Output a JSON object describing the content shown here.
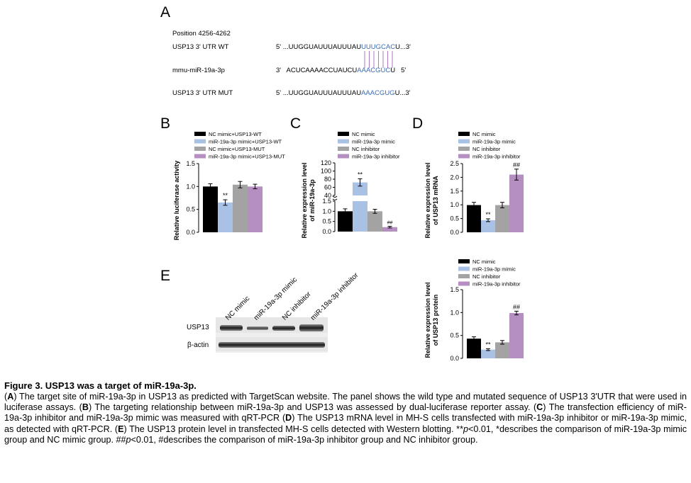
{
  "colors": {
    "nc_mimic": "#000000",
    "mimic": "#a9c1e5",
    "nc_inhibitor": "#a3a3a3",
    "inhibitor": "#b58fc1",
    "seq_blue": "#3a6db5",
    "pair_line": "#9b59b6"
  },
  "panelA": {
    "letter": "A",
    "position": "Position 4256-4262",
    "rows": [
      {
        "label": "USP13 3' UTR WT",
        "p5": "5'",
        "pre": "...UUGGUAUUUAUUUAU",
        "hl": "UUUGCAC",
        "post": "U...3'"
      },
      {
        "label": "mmu-miR-19a-3p",
        "p5": "3'",
        "pre": "ACUCAAAACCUAUCU",
        "hl": "AAACGUC",
        "post": "U",
        "p3": "5'"
      },
      {
        "label": "USP13 3' UTR MUT",
        "p5": "5'",
        "pre": "...UUGGUAUUUAUUUAU",
        "hl": "AAACGUG",
        "post": "U...3'"
      }
    ]
  },
  "panelE": {
    "letter": "E",
    "lanes": [
      "NC mimic",
      "miR-19a-3p mimic",
      "NC inhibitor",
      "miR-19a-3p inhibitor"
    ],
    "bands": [
      "USP13",
      "β-actin"
    ]
  },
  "chart_data": [
    {
      "id": "B",
      "type": "bar",
      "letter": "B",
      "ylabel": "Relative luciferase activity",
      "legend": [
        "NC mimic+USP13-WT",
        "miR-19a-3p mimic+USP13-WT",
        "NC mimic+USP13-MUT",
        "miR-19a-3p mimic+USP13-MUT"
      ],
      "values": [
        1.0,
        0.65,
        1.04,
        1.0
      ],
      "errors": [
        0.06,
        0.06,
        0.07,
        0.05
      ],
      "marks": [
        "",
        "**",
        "",
        ""
      ],
      "ylim": [
        0,
        1.5
      ],
      "yticks": [
        "0.0",
        "0.5",
        "1.0",
        "1.5"
      ]
    },
    {
      "id": "C",
      "type": "bar",
      "letter": "C",
      "ylabel": "Relative expression level of miR-19a-3p",
      "legend": [
        "NC mimic",
        "miR-19a-3p mimic",
        "NC inhibitor",
        "miR-19a-3p inhibitor"
      ],
      "values": [
        1.0,
        72,
        1.0,
        0.22
      ],
      "errors": [
        0.12,
        9,
        0.1,
        0.04
      ],
      "marks": [
        "",
        "**",
        "",
        "##"
      ],
      "broken_axis": {
        "lower": [
          0,
          1.5
        ],
        "upper": [
          40,
          120
        ]
      },
      "yticks_lower": [
        "0.0",
        "0.5",
        "1.0",
        "1.5"
      ],
      "yticks_upper": [
        "40",
        "60",
        "80",
        "100",
        "120"
      ]
    },
    {
      "id": "D",
      "type": "bar",
      "letter": "D",
      "ylabel": "Relative expression level of USP13 mRNA",
      "legend": [
        "NC mimic",
        "miR-19a-3p mimic",
        "NC inhibitor",
        "miR-19a-3p inhibitor"
      ],
      "values": [
        0.99,
        0.44,
        0.99,
        2.1
      ],
      "errors": [
        0.1,
        0.05,
        0.1,
        0.2
      ],
      "marks": [
        "",
        "**",
        "",
        "##"
      ],
      "ylim": [
        0,
        2.5
      ],
      "yticks": [
        "0.0",
        "0.5",
        "1.0",
        "1.5",
        "2.0",
        "2.5"
      ]
    },
    {
      "id": "E",
      "type": "bar",
      "ylabel": "Relative expression level of USP13 protein",
      "legend": [
        "NC mimic",
        "miR-19a-3p mimic",
        "NC inhibitor",
        "miR-19a-3p inhibitor"
      ],
      "values": [
        0.43,
        0.19,
        0.35,
        0.99
      ],
      "errors": [
        0.04,
        0.02,
        0.04,
        0.04
      ],
      "marks": [
        "",
        "**",
        "",
        "##"
      ],
      "ylim": [
        0,
        1.5
      ],
      "yticks": [
        "0.0",
        "0.5",
        "1.0",
        "1.5"
      ]
    }
  ],
  "caption": {
    "title": "Figure 3. USP13 was a target of miR-19a-3p.",
    "A_letter": "A",
    "A_text": ") The target site of miR-19a-3p in USP13 as predicted with TargetScan website. The panel shows the wild type and mutated sequence of USP13 3'UTR that were used in luciferase assays. (",
    "B_letter": "B",
    "B_text": ") The targeting relationship between miR-19a-3p and USP13 was assessed by dual-luciferase reporter assay. (",
    "C_letter": "C",
    "C_text": ") The transfection efficiency of miR-19a-3p inhibitor and miR-19a-3p mimic was measured with qRT-PCR (",
    "D_letter": "D",
    "D_text": ") The USP13 mRNA level in MH-S cells transfected with miR-19a-3p inhibitor or miR-19a-3p mimic, as detected with qRT-PCR. (",
    "E_letter": "E",
    "E_text": ") The USP13 protein level in transfected MH-S cells detected with Western blotting. **",
    "p1": "p",
    "s1": "<0.01, *describes the comparison of miR-19a-3p mimic group and NC mimic group. ##",
    "p2": "p",
    "s2": "<0.01, #describes the comparison of miR-19a-3p inhibitor group and NC inhibitor group."
  }
}
